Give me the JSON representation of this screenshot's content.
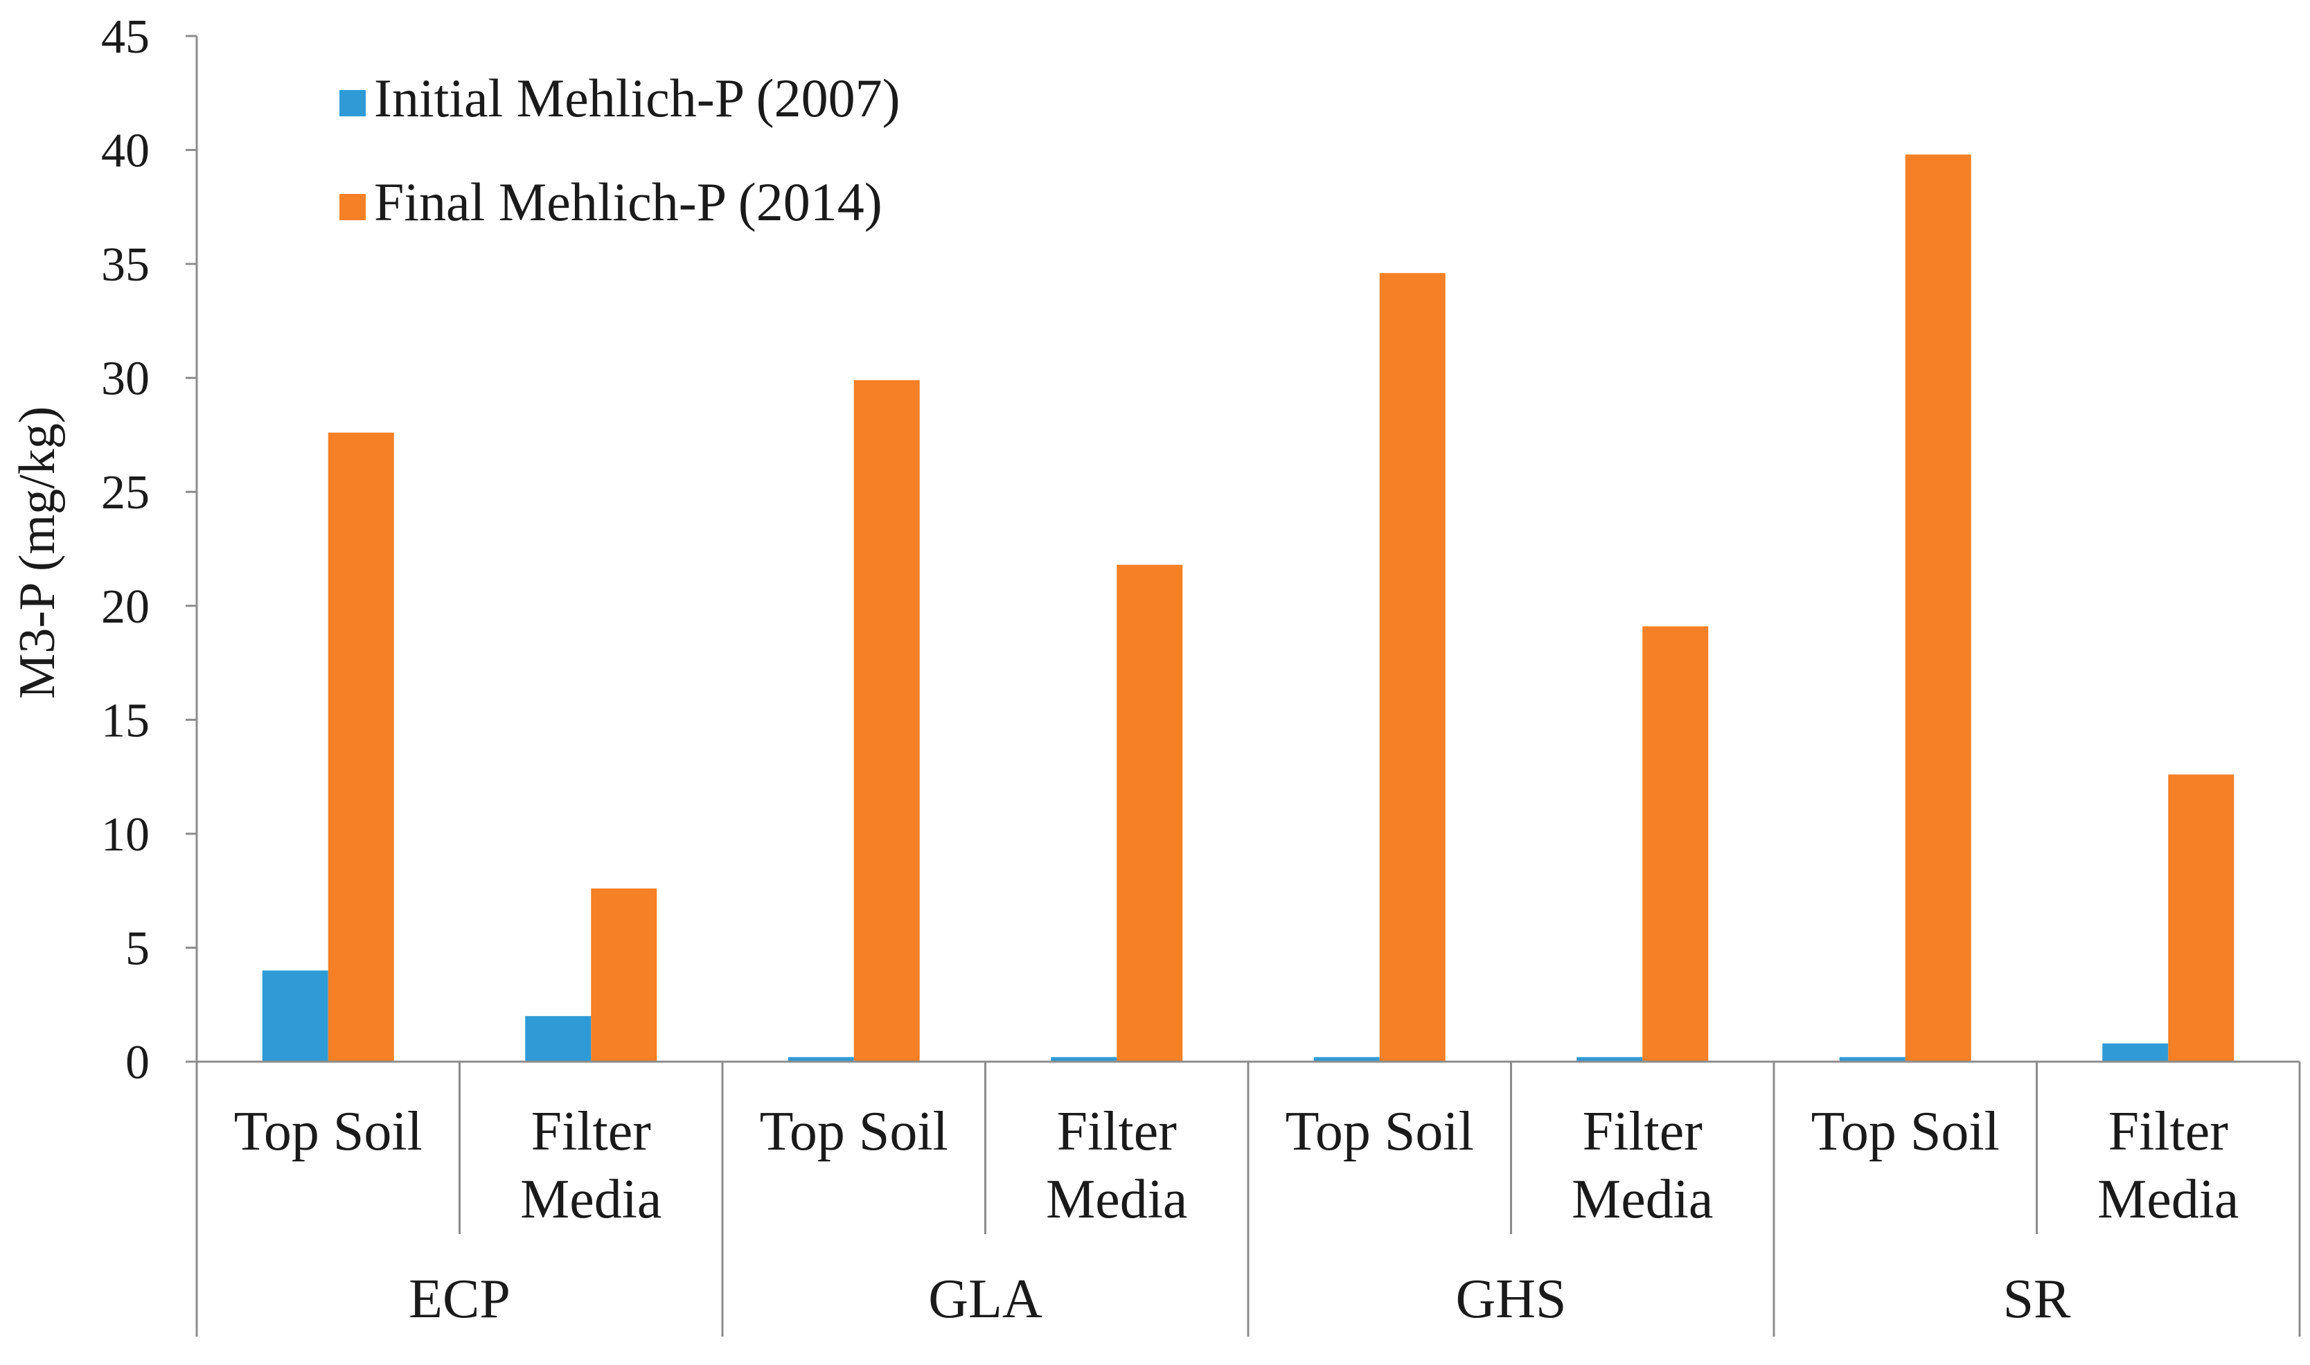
{
  "chart_data": {
    "type": "bar",
    "title": "",
    "xlabel": "",
    "ylabel": "M3-P (mg/kg)",
    "ylim": [
      0,
      45
    ],
    "yticks": [
      0,
      5,
      10,
      15,
      20,
      25,
      30,
      35,
      40,
      45
    ],
    "grid": false,
    "legend_position": "top-left",
    "groups": [
      "ECP",
      "GLA",
      "GHS",
      "SR"
    ],
    "subcategories": [
      [
        "Top Soil"
      ],
      [
        "Filter",
        "Media"
      ]
    ],
    "categories": [
      "ECP Top Soil",
      "ECP Filter Media",
      "GLA Top Soil",
      "GLA Filter Media",
      "GHS Top Soil",
      "GHS Filter Media",
      "SR Top Soil",
      "SR Filter Media"
    ],
    "series": [
      {
        "name": "Initial Mehlich-P (2007)",
        "color": "#2e9bd6",
        "values": [
          4.0,
          2.0,
          0.2,
          0.2,
          0.2,
          0.2,
          0.2,
          0.8
        ]
      },
      {
        "name": "Final Mehlich-P (2014)",
        "color": "#f58025",
        "values": [
          27.6,
          7.6,
          29.9,
          21.8,
          34.6,
          19.1,
          39.8,
          12.6
        ]
      }
    ]
  }
}
